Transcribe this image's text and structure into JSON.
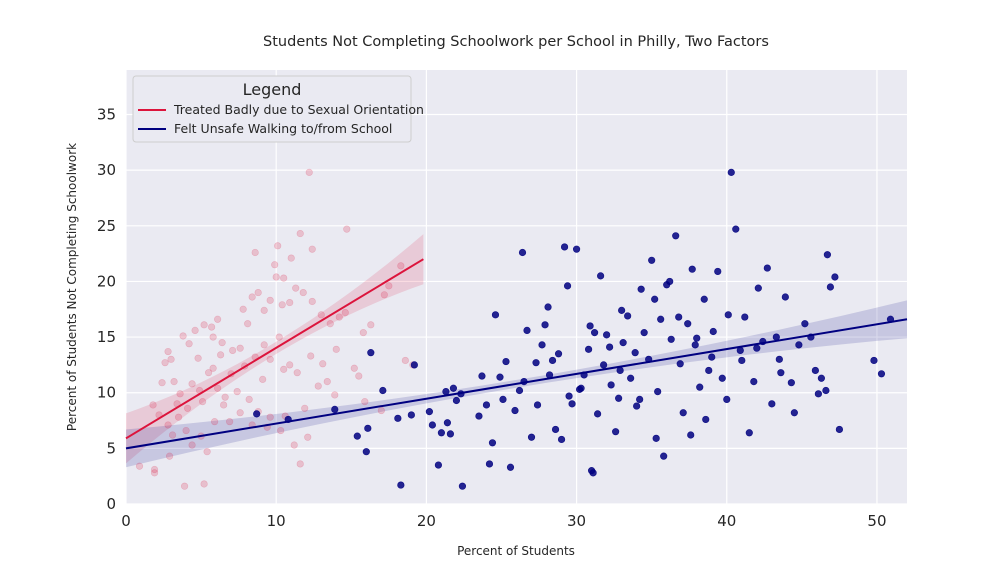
{
  "chart_data": {
    "type": "scatter",
    "title": "Students Not Completing Schoolwork per School in Philly, Two Factors",
    "xlabel": "Percent of Students",
    "ylabel": "Percent of Students Not Completing Schoolwork",
    "xlim": [
      0,
      52
    ],
    "ylim": [
      0,
      39
    ],
    "xticks": [
      0,
      10,
      20,
      30,
      40,
      50
    ],
    "yticks": [
      0,
      5,
      10,
      15,
      20,
      25,
      30,
      35
    ],
    "grid": true,
    "legend": {
      "title": "Legend",
      "placement": "top-left"
    },
    "series": [
      {
        "name": "Treated Badly due to Sexual Orientation",
        "color": "#dc143c",
        "point_alpha": 0.2,
        "fit": {
          "x": [
            0,
            19.8
          ],
          "y": [
            5.9,
            22.0
          ]
        },
        "points": [
          [
            0.9,
            3.4
          ],
          [
            1.9,
            2.8
          ],
          [
            1.9,
            3.1
          ],
          [
            2.9,
            4.3
          ],
          [
            3.9,
            1.6
          ],
          [
            5.2,
            1.8
          ],
          [
            1.8,
            8.9
          ],
          [
            2.8,
            7.1
          ],
          [
            3.1,
            6.2
          ],
          [
            3.5,
            7.8
          ],
          [
            4.0,
            6.6
          ],
          [
            4.4,
            5.3
          ],
          [
            5.0,
            6.1
          ],
          [
            5.4,
            4.7
          ],
          [
            5.9,
            7.4
          ],
          [
            6.5,
            8.9
          ],
          [
            2.6,
            12.7
          ],
          [
            2.8,
            13.7
          ],
          [
            3.2,
            11.0
          ],
          [
            3.6,
            9.9
          ],
          [
            4.1,
            8.6
          ],
          [
            4.4,
            10.8
          ],
          [
            4.8,
            13.1
          ],
          [
            5.1,
            9.2
          ],
          [
            5.5,
            11.8
          ],
          [
            5.8,
            12.2
          ],
          [
            6.1,
            10.4
          ],
          [
            6.6,
            9.6
          ],
          [
            7.0,
            11.7
          ],
          [
            7.4,
            10.1
          ],
          [
            8.2,
            9.4
          ],
          [
            8.8,
            8.3
          ],
          [
            9.6,
            7.8
          ],
          [
            10.3,
            6.6
          ],
          [
            11.2,
            5.3
          ],
          [
            12.1,
            6.0
          ],
          [
            11.6,
            3.6
          ],
          [
            3.8,
            15.1
          ],
          [
            4.6,
            15.6
          ],
          [
            5.2,
            16.1
          ],
          [
            5.8,
            15.0
          ],
          [
            6.4,
            14.5
          ],
          [
            7.1,
            13.8
          ],
          [
            7.6,
            14.0
          ],
          [
            8.1,
            16.2
          ],
          [
            8.6,
            13.2
          ],
          [
            9.2,
            14.3
          ],
          [
            9.6,
            13.0
          ],
          [
            10.2,
            15.0
          ],
          [
            10.9,
            12.5
          ],
          [
            11.4,
            11.8
          ],
          [
            12.3,
            13.3
          ],
          [
            13.1,
            12.6
          ],
          [
            14.0,
            13.9
          ],
          [
            15.2,
            12.2
          ],
          [
            15.5,
            11.5
          ],
          [
            7.8,
            17.5
          ],
          [
            8.4,
            18.6
          ],
          [
            8.8,
            19.0
          ],
          [
            9.2,
            17.4
          ],
          [
            9.6,
            18.3
          ],
          [
            10.0,
            20.4
          ],
          [
            10.4,
            17.9
          ],
          [
            10.9,
            18.1
          ],
          [
            11.3,
            19.4
          ],
          [
            11.8,
            19.0
          ],
          [
            12.4,
            18.2
          ],
          [
            13.0,
            17.0
          ],
          [
            13.6,
            16.2
          ],
          [
            14.2,
            16.8
          ],
          [
            14.6,
            17.2
          ],
          [
            15.8,
            15.4
          ],
          [
            16.3,
            16.1
          ],
          [
            17.2,
            18.8
          ],
          [
            17.5,
            19.6
          ],
          [
            18.3,
            21.4
          ],
          [
            8.6,
            22.6
          ],
          [
            10.1,
            23.2
          ],
          [
            11.6,
            24.3
          ],
          [
            12.4,
            22.9
          ],
          [
            14.7,
            24.7
          ],
          [
            12.2,
            29.8
          ],
          [
            10.5,
            20.3
          ],
          [
            9.9,
            21.5
          ],
          [
            11.0,
            22.1
          ],
          [
            6.1,
            16.6
          ],
          [
            5.7,
            15.9
          ],
          [
            4.2,
            14.4
          ],
          [
            3.0,
            13.0
          ],
          [
            7.9,
            12.4
          ],
          [
            9.1,
            11.2
          ],
          [
            10.5,
            12.1
          ],
          [
            12.8,
            10.6
          ],
          [
            13.9,
            9.8
          ],
          [
            15.9,
            9.2
          ],
          [
            17.0,
            8.4
          ],
          [
            18.6,
            12.9
          ],
          [
            19.1,
            12.5
          ],
          [
            6.9,
            7.4
          ],
          [
            7.6,
            8.2
          ],
          [
            8.4,
            7.1
          ],
          [
            9.4,
            6.9
          ],
          [
            10.6,
            7.9
          ],
          [
            11.9,
            8.6
          ],
          [
            13.4,
            11.0
          ],
          [
            4.9,
            10.2
          ],
          [
            3.4,
            9.0
          ],
          [
            2.2,
            8.0
          ],
          [
            2.4,
            10.9
          ],
          [
            6.3,
            13.4
          ]
        ]
      },
      {
        "name": "Felt Unsafe Walking to/from School",
        "color": "#000080",
        "point_alpha": 0.85,
        "fit": {
          "x": [
            0,
            52
          ],
          "y": [
            5.0,
            16.6
          ]
        },
        "points": [
          [
            8.7,
            8.1
          ],
          [
            10.8,
            7.6
          ],
          [
            13.9,
            8.5
          ],
          [
            15.4,
            6.1
          ],
          [
            16.1,
            6.8
          ],
          [
            16.0,
            4.7
          ],
          [
            16.3,
            13.6
          ],
          [
            17.1,
            10.2
          ],
          [
            18.1,
            7.7
          ],
          [
            18.3,
            1.7
          ],
          [
            19.0,
            8.0
          ],
          [
            19.2,
            12.5
          ],
          [
            20.2,
            8.3
          ],
          [
            20.4,
            7.1
          ],
          [
            20.8,
            3.5
          ],
          [
            21.0,
            6.4
          ],
          [
            21.3,
            10.1
          ],
          [
            21.6,
            6.3
          ],
          [
            21.8,
            10.4
          ],
          [
            22.3,
            9.9
          ],
          [
            22.4,
            1.6
          ],
          [
            23.5,
            7.9
          ],
          [
            24.0,
            8.9
          ],
          [
            24.2,
            3.6
          ],
          [
            24.4,
            5.5
          ],
          [
            24.6,
            17.0
          ],
          [
            24.9,
            11.4
          ],
          [
            25.3,
            12.8
          ],
          [
            25.6,
            3.3
          ],
          [
            25.9,
            8.4
          ],
          [
            26.2,
            10.2
          ],
          [
            26.4,
            22.6
          ],
          [
            26.7,
            15.6
          ],
          [
            27.0,
            6.0
          ],
          [
            27.3,
            12.7
          ],
          [
            27.7,
            14.3
          ],
          [
            27.9,
            16.1
          ],
          [
            28.1,
            17.7
          ],
          [
            28.4,
            12.9
          ],
          [
            28.6,
            6.7
          ],
          [
            28.8,
            13.5
          ],
          [
            29.0,
            5.8
          ],
          [
            29.2,
            23.1
          ],
          [
            29.4,
            19.6
          ],
          [
            29.7,
            9.0
          ],
          [
            30.0,
            22.9
          ],
          [
            30.2,
            10.3
          ],
          [
            30.5,
            11.6
          ],
          [
            30.8,
            13.9
          ],
          [
            31.0,
            3.0
          ],
          [
            31.2,
            15.4
          ],
          [
            31.4,
            8.1
          ],
          [
            31.6,
            20.5
          ],
          [
            31.8,
            12.5
          ],
          [
            32.0,
            15.2
          ],
          [
            32.3,
            10.7
          ],
          [
            32.6,
            6.5
          ],
          [
            32.9,
            12.0
          ],
          [
            33.1,
            14.5
          ],
          [
            33.4,
            16.9
          ],
          [
            33.6,
            11.3
          ],
          [
            33.9,
            13.6
          ],
          [
            34.2,
            9.4
          ],
          [
            34.5,
            15.4
          ],
          [
            34.8,
            13.0
          ],
          [
            35.0,
            21.9
          ],
          [
            35.2,
            18.4
          ],
          [
            35.4,
            10.1
          ],
          [
            35.6,
            16.6
          ],
          [
            35.8,
            4.3
          ],
          [
            36.0,
            19.7
          ],
          [
            36.3,
            14.8
          ],
          [
            36.6,
            24.1
          ],
          [
            36.9,
            12.6
          ],
          [
            37.1,
            8.2
          ],
          [
            37.4,
            16.2
          ],
          [
            37.7,
            21.1
          ],
          [
            37.9,
            14.3
          ],
          [
            38.2,
            10.5
          ],
          [
            38.5,
            18.4
          ],
          [
            38.8,
            12.0
          ],
          [
            39.1,
            15.5
          ],
          [
            39.4,
            20.9
          ],
          [
            39.7,
            11.3
          ],
          [
            40.0,
            9.4
          ],
          [
            40.3,
            29.8
          ],
          [
            40.6,
            24.7
          ],
          [
            40.9,
            13.8
          ],
          [
            41.2,
            16.8
          ],
          [
            41.5,
            6.4
          ],
          [
            41.8,
            11.0
          ],
          [
            42.1,
            19.4
          ],
          [
            42.4,
            14.6
          ],
          [
            42.7,
            21.2
          ],
          [
            43.0,
            9.0
          ],
          [
            43.3,
            15.0
          ],
          [
            43.6,
            11.8
          ],
          [
            43.9,
            18.6
          ],
          [
            44.5,
            8.2
          ],
          [
            44.8,
            14.3
          ],
          [
            45.6,
            15.0
          ],
          [
            45.9,
            12.0
          ],
          [
            46.3,
            11.3
          ],
          [
            46.6,
            10.2
          ],
          [
            46.7,
            22.4
          ],
          [
            46.9,
            19.5
          ],
          [
            47.2,
            20.4
          ],
          [
            47.5,
            6.7
          ],
          [
            49.8,
            12.9
          ],
          [
            50.3,
            11.7
          ],
          [
            50.9,
            16.6
          ],
          [
            30.3,
            10.4
          ],
          [
            31.1,
            2.8
          ],
          [
            32.2,
            14.1
          ],
          [
            33.0,
            17.4
          ],
          [
            34.0,
            8.8
          ],
          [
            35.3,
            5.9
          ],
          [
            36.2,
            20.0
          ],
          [
            37.6,
            6.2
          ],
          [
            38.0,
            14.9
          ],
          [
            39.0,
            13.2
          ],
          [
            27.4,
            8.9
          ],
          [
            28.2,
            11.6
          ],
          [
            29.5,
            9.7
          ],
          [
            26.5,
            11.0
          ],
          [
            25.1,
            9.4
          ],
          [
            23.7,
            11.5
          ],
          [
            22.0,
            9.3
          ],
          [
            21.4,
            7.3
          ],
          [
            30.9,
            16.0
          ],
          [
            32.8,
            9.5
          ],
          [
            34.3,
            19.3
          ],
          [
            36.8,
            16.8
          ],
          [
            38.6,
            7.6
          ],
          [
            40.1,
            17.0
          ],
          [
            41.0,
            12.9
          ],
          [
            42.0,
            14.0
          ],
          [
            43.5,
            13.0
          ],
          [
            44.3,
            10.9
          ],
          [
            45.2,
            16.2
          ],
          [
            46.1,
            9.9
          ]
        ]
      }
    ]
  }
}
